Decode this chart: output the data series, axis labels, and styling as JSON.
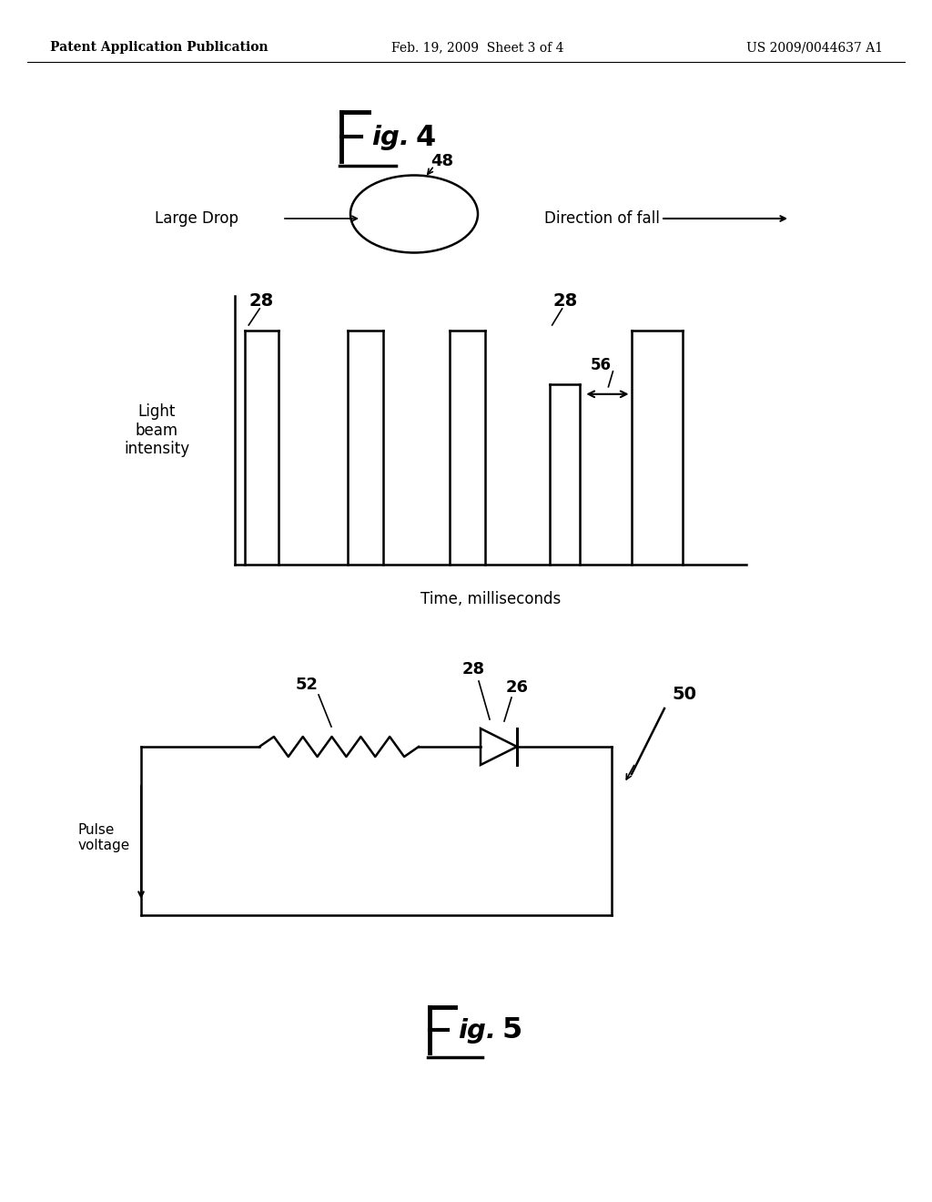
{
  "bg_color": "#ffffff",
  "header_left": "Patent Application Publication",
  "header_center": "Feb. 19, 2009  Sheet 3 of 4",
  "header_right": "US 2009/0044637 A1",
  "fig4_xlabel": "Time, milliseconds",
  "fig4_ylabel": "Light\nbeam\nintensity",
  "label_large_drop": "Large Drop",
  "label_dir_fall": "Direction of fall",
  "label_48": "48",
  "label_28_left": "28",
  "label_28_right": "28",
  "label_56": "56",
  "label_52": "52",
  "label_28_circ": "28",
  "label_26": "26",
  "label_50": "50",
  "label_pulse": "Pulse\nvoltage"
}
